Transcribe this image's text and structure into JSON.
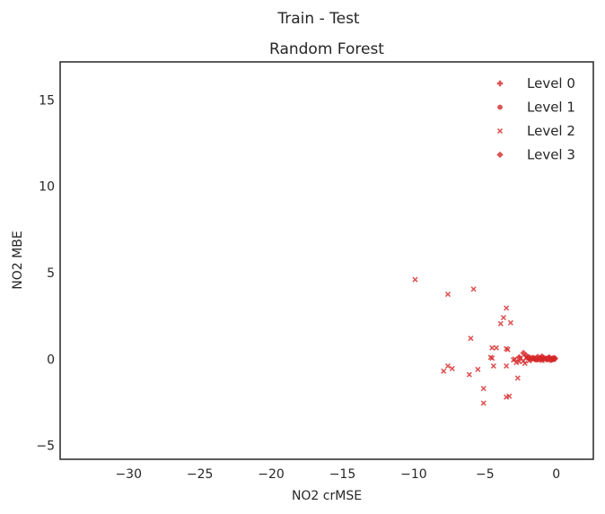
{
  "chart_data": {
    "type": "scatter",
    "suptitle": "Train - Test",
    "title": "Random Forest",
    "xlabel": "NO2 crMSE",
    "ylabel": "NO2 MBE",
    "xlim": [
      -34.8,
      2.6
    ],
    "ylim": [
      -5.8,
      17.2
    ],
    "xticks": [
      -30,
      -25,
      -20,
      -15,
      -10,
      -5,
      0
    ],
    "xtick_labels": [
      "−30",
      "−25",
      "−20",
      "−15",
      "−10",
      "−5",
      "0"
    ],
    "yticks": [
      -5,
      0,
      5,
      10,
      15
    ],
    "ytick_labels": [
      "−5",
      "0",
      "5",
      "10",
      "15"
    ],
    "grid": false,
    "legend_position": "top-right",
    "marker_color": "#d62728",
    "series": [
      {
        "name": "Level 0",
        "marker": "plus",
        "points": [
          [
            -0.1,
            0.02
          ],
          [
            -0.2,
            0.05
          ],
          [
            -0.3,
            -0.03
          ],
          [
            -0.5,
            0.04
          ],
          [
            -0.7,
            0.01
          ],
          [
            -0.9,
            -0.05
          ],
          [
            -1.1,
            0.06
          ],
          [
            -1.3,
            -0.02
          ],
          [
            -1.5,
            0.03
          ],
          [
            -0.4,
            -0.06
          ]
        ]
      },
      {
        "name": "Level 1",
        "marker": "circle",
        "points": [
          [
            -0.2,
            0.0
          ],
          [
            -0.4,
            0.03
          ],
          [
            -0.6,
            -0.04
          ],
          [
            -0.8,
            0.05
          ],
          [
            -1.0,
            -0.02
          ],
          [
            -1.2,
            0.04
          ],
          [
            -1.4,
            -0.05
          ],
          [
            -1.6,
            0.02
          ],
          [
            -1.8,
            -0.03
          ],
          [
            -2.0,
            0.06
          ],
          [
            -0.15,
            -0.02
          ],
          [
            -0.55,
            0.07
          ]
        ]
      },
      {
        "name": "Level 2",
        "marker": "x",
        "points": [
          [
            -9.9,
            4.6
          ],
          [
            -7.6,
            3.75
          ],
          [
            -5.8,
            4.05
          ],
          [
            -3.5,
            2.95
          ],
          [
            -3.7,
            2.4
          ],
          [
            -3.2,
            2.1
          ],
          [
            -3.9,
            2.05
          ],
          [
            -6.0,
            1.2
          ],
          [
            -4.5,
            0.65
          ],
          [
            -4.2,
            0.65
          ],
          [
            -3.4,
            0.55
          ],
          [
            -3.5,
            0.6
          ],
          [
            -4.6,
            0.1
          ],
          [
            -4.5,
            0.05
          ],
          [
            -3.0,
            -0.05
          ],
          [
            -7.6,
            -0.4
          ],
          [
            -7.9,
            -0.7
          ],
          [
            -7.3,
            -0.55
          ],
          [
            -6.1,
            -0.9
          ],
          [
            -5.5,
            -0.6
          ],
          [
            -4.4,
            -0.4
          ],
          [
            -3.5,
            -0.4
          ],
          [
            -2.8,
            -0.2
          ],
          [
            -2.6,
            -0.15
          ],
          [
            -2.7,
            -1.1
          ],
          [
            -5.1,
            -1.7
          ],
          [
            -3.3,
            -2.15
          ],
          [
            -3.5,
            -2.2
          ],
          [
            -5.1,
            -2.55
          ],
          [
            -2.9,
            0.0
          ],
          [
            -2.5,
            0.05
          ],
          [
            -2.3,
            -0.1
          ],
          [
            -2.1,
            0.1
          ],
          [
            -1.9,
            -0.1
          ],
          [
            -1.7,
            0.05
          ],
          [
            -2.2,
            -0.25
          ],
          [
            -1.5,
            0.1
          ]
        ]
      },
      {
        "name": "Level 3",
        "marker": "diamond",
        "points": [
          [
            -2.3,
            0.35
          ],
          [
            -2.1,
            0.2
          ],
          [
            -1.9,
            0.1
          ],
          [
            -1.7,
            0.05
          ],
          [
            -1.5,
            0.0
          ],
          [
            -1.3,
            0.12
          ],
          [
            -1.1,
            -0.05
          ],
          [
            -0.9,
            0.08
          ],
          [
            -0.7,
            0.0
          ],
          [
            -0.5,
            0.1
          ],
          [
            -0.3,
            0.02
          ],
          [
            -0.1,
            0.05
          ],
          [
            -2.6,
            0.1
          ],
          [
            -1.0,
            0.15
          ]
        ]
      }
    ]
  }
}
